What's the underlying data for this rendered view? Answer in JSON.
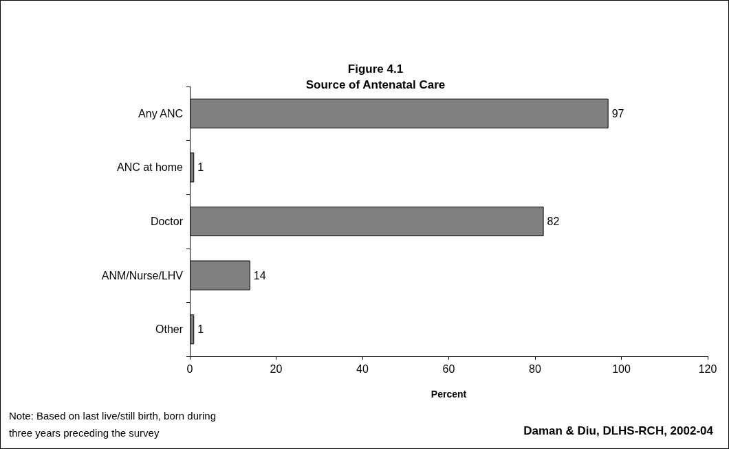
{
  "chart_data": {
    "type": "bar",
    "orientation": "horizontal",
    "title": "Figure 4.1",
    "subtitle": "Source of Antenatal Care",
    "xlabel": "Percent",
    "categories": [
      "Any ANC",
      "ANC at home",
      "Doctor",
      "ANM/Nurse/LHV",
      "Other"
    ],
    "values": [
      97,
      1,
      82,
      14,
      1
    ],
    "color": "#808080",
    "data_labels": true,
    "xlim": [
      0,
      120
    ],
    "xticks": [
      0,
      20,
      40,
      60,
      80,
      100,
      120
    ],
    "grid": false,
    "annotations": [
      "Note: Based on last live/still birth, born during\nthree years preceding the survey",
      "Daman & Diu, DLHS-RCH, 2002-04"
    ]
  }
}
